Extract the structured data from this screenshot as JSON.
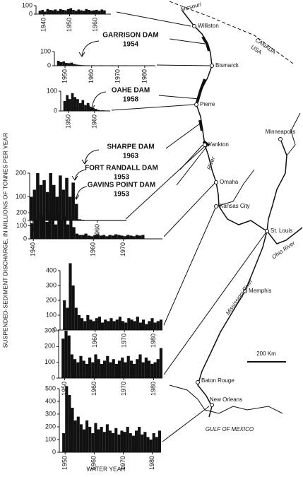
{
  "y_label": "SUSPENDED-SEDIMENT DISCHARGE, IN MILLIONS OF TONNES PER YEAR",
  "x_label": "WATER YEAR",
  "chart_data": [
    {
      "type": "bar",
      "color": "#111111",
      "xlim": [
        1937,
        1966
      ],
      "xticks": [
        1940,
        1950,
        1960
      ],
      "ylim": [
        0,
        100
      ],
      "yticks": [
        0,
        100
      ],
      "x": [
        1938,
        1939,
        1940,
        1941,
        1942,
        1943,
        1944,
        1945,
        1946,
        1947,
        1948,
        1949,
        1950,
        1951,
        1952,
        1953,
        1954,
        1955,
        1956,
        1957,
        1958,
        1959,
        1960,
        1961,
        1962,
        1963
      ],
      "values": [
        40,
        50,
        30,
        60,
        50,
        45,
        55,
        40,
        60,
        50,
        45,
        60,
        70,
        50,
        40,
        55,
        45,
        40,
        60,
        50,
        40,
        45,
        50,
        40,
        55,
        45
      ]
    },
    {
      "type": "bar",
      "color": "#111111",
      "xlim": [
        1946,
        1984
      ],
      "xticks": [
        1950,
        1960,
        1970,
        1980
      ],
      "ylim": [
        0,
        100
      ],
      "yticks": [
        0,
        100
      ],
      "x": [
        1947,
        1948,
        1949,
        1950,
        1951,
        1952,
        1953,
        1954,
        1955,
        1956,
        1957,
        1958,
        1959,
        1960,
        1961,
        1962,
        1963,
        1964,
        1965,
        1966,
        1967,
        1968,
        1969,
        1970,
        1971,
        1972,
        1973,
        1974,
        1975,
        1976,
        1977,
        1978,
        1979,
        1980,
        1981,
        1982,
        1983
      ],
      "values": [
        35,
        25,
        30,
        20,
        18,
        22,
        12,
        8,
        6,
        4,
        3,
        3,
        2,
        3,
        2,
        2,
        3,
        2,
        2,
        2,
        3,
        2,
        2,
        2,
        2,
        3,
        2,
        2,
        2,
        2,
        2,
        2,
        2,
        2,
        2,
        3,
        2
      ]
    },
    {
      "type": "bar",
      "color": "#111111",
      "xlim": [
        1947,
        1966
      ],
      "xticks": [
        1950,
        1960
      ],
      "ylim": [
        0,
        100
      ],
      "yticks": [
        0,
        100
      ],
      "x": [
        1948,
        1949,
        1950,
        1951,
        1952,
        1953,
        1954,
        1955,
        1956,
        1957,
        1958,
        1959,
        1960,
        1961,
        1962,
        1963,
        1964,
        1965
      ],
      "values": [
        50,
        80,
        60,
        90,
        70,
        60,
        40,
        55,
        30,
        40,
        20,
        15,
        10,
        5,
        3,
        3,
        2,
        2
      ]
    },
    {
      "type": "bar",
      "color": "#111111",
      "xlim": [
        1939,
        1969
      ],
      "xticks": [
        1940,
        1960
      ],
      "ylim": [
        0,
        200
      ],
      "yticks": [
        0,
        100,
        200
      ],
      "x": [
        1939,
        1940,
        1941,
        1942,
        1943,
        1944,
        1945,
        1946,
        1947,
        1948,
        1949,
        1950,
        1951,
        1952,
        1953,
        1954,
        1955,
        1956,
        1957,
        1958,
        1959,
        1960,
        1961,
        1962,
        1963,
        1964,
        1965,
        1966,
        1967,
        1968
      ],
      "values": [
        100,
        130,
        200,
        150,
        170,
        120,
        200,
        150,
        100,
        190,
        130,
        180,
        100,
        160,
        70,
        5,
        3,
        2,
        2,
        2,
        2,
        2,
        2,
        2,
        2,
        2,
        2,
        2,
        2,
        2
      ]
    },
    {
      "type": "bar",
      "color": "#111111",
      "xlim": [
        1939,
        1983
      ],
      "xticks": [
        1940,
        1960,
        1970
      ],
      "ylim": [
        0,
        200
      ],
      "yticks": [
        0,
        100,
        200
      ],
      "x": [
        1939,
        1940,
        1941,
        1942,
        1943,
        1944,
        1945,
        1946,
        1947,
        1948,
        1949,
        1950,
        1951,
        1952,
        1953,
        1954,
        1955,
        1956,
        1957,
        1958,
        1959,
        1960,
        1961,
        1962,
        1963,
        1964,
        1965,
        1966,
        1967,
        1968,
        1969,
        1970,
        1971,
        1972,
        1973,
        1974,
        1975,
        1976
      ],
      "values": [
        120,
        150,
        200,
        140,
        180,
        130,
        200,
        160,
        110,
        190,
        140,
        170,
        110,
        150,
        90,
        40,
        30,
        30,
        40,
        25,
        20,
        30,
        35,
        25,
        30,
        20,
        30,
        25,
        35,
        30,
        25,
        20,
        30,
        25,
        20,
        30,
        25,
        30
      ]
    },
    {
      "type": "bar",
      "color": "#111111",
      "xlim": [
        1948,
        1983
      ],
      "xticks": [
        1960,
        1970,
        1980
      ],
      "ylim": [
        0,
        400
      ],
      "yticks": [
        0,
        100,
        200,
        300,
        400
      ],
      "x": [
        1949,
        1950,
        1951,
        1952,
        1953,
        1954,
        1955,
        1956,
        1957,
        1958,
        1959,
        1960,
        1961,
        1962,
        1963,
        1964,
        1965,
        1966,
        1967,
        1968,
        1969,
        1970,
        1971,
        1972,
        1973,
        1974,
        1975,
        1976,
        1977,
        1978,
        1979,
        1980,
        1981,
        1982
      ],
      "values": [
        200,
        150,
        450,
        300,
        150,
        100,
        80,
        60,
        100,
        70,
        60,
        80,
        90,
        50,
        70,
        60,
        80,
        60,
        70,
        90,
        60,
        50,
        80,
        70,
        60,
        90,
        50,
        70,
        40,
        60,
        80,
        50,
        60,
        70
      ]
    },
    {
      "type": "bar",
      "color": "#111111",
      "xlim": [
        1948,
        1983
      ],
      "xticks": [
        1950,
        1960,
        1970,
        1980
      ],
      "ylim": [
        0,
        300
      ],
      "yticks": [
        0,
        100,
        200,
        300
      ],
      "x": [
        1949,
        1950,
        1951,
        1952,
        1953,
        1954,
        1955,
        1956,
        1957,
        1958,
        1959,
        1960,
        1961,
        1962,
        1963,
        1964,
        1965,
        1966,
        1967,
        1968,
        1969,
        1970,
        1971,
        1972,
        1973,
        1974,
        1975,
        1976,
        1977,
        1978,
        1979,
        1980,
        1981,
        1982
      ],
      "values": [
        250,
        300,
        270,
        150,
        120,
        100,
        140,
        110,
        90,
        130,
        100,
        150,
        120,
        90,
        110,
        140,
        100,
        120,
        90,
        110,
        130,
        100,
        140,
        110,
        90,
        120,
        150,
        100,
        130,
        110,
        90,
        100,
        120,
        190
      ]
    },
    {
      "type": "bar",
      "color": "#111111",
      "xlim": [
        1948,
        1983
      ],
      "xticks": [
        1950,
        1960,
        1970,
        1980
      ],
      "ylim": [
        0,
        500
      ],
      "yticks": [
        0,
        100,
        200,
        300,
        400,
        500
      ],
      "x": [
        1949,
        1950,
        1951,
        1952,
        1953,
        1954,
        1955,
        1956,
        1957,
        1958,
        1959,
        1960,
        1961,
        1962,
        1963,
        1964,
        1965,
        1966,
        1967,
        1968,
        1969,
        1970,
        1971,
        1972,
        1973,
        1974,
        1975,
        1976,
        1977,
        1978,
        1979,
        1980,
        1981,
        1982
      ],
      "values": [
        150,
        520,
        450,
        350,
        250,
        280,
        220,
        180,
        250,
        200,
        150,
        230,
        180,
        200,
        160,
        220,
        170,
        150,
        190,
        140,
        170,
        160,
        200,
        150,
        130,
        170,
        200,
        140,
        160,
        120,
        100,
        150,
        120,
        170
      ]
    }
  ],
  "map": {
    "cities": [
      "Williston",
      "Bismarck",
      "Pierre",
      "Yankton",
      "Omaha",
      "Kansas City",
      "St. Louis",
      "Minneapolis",
      "Memphis",
      "Baton Rouge",
      "New Orleans"
    ],
    "dams": [
      {
        "name": "GARRISON DAM",
        "year": 1954
      },
      {
        "name": "OAHE DAM",
        "year": 1958
      },
      {
        "name": "SHARPE DAM",
        "year": 1963
      },
      {
        "name": "FORT RANDALL DAM",
        "year": 1953
      },
      {
        "name": "GAVINS POINT DAM",
        "year": 1953
      }
    ],
    "rivers": [
      "Missouri",
      "River",
      "Ohio River",
      "Mississippi River"
    ],
    "countries": [
      "CANADA",
      "USA"
    ],
    "sea": "GULF OF MEXICO",
    "scale": "200 Km"
  }
}
